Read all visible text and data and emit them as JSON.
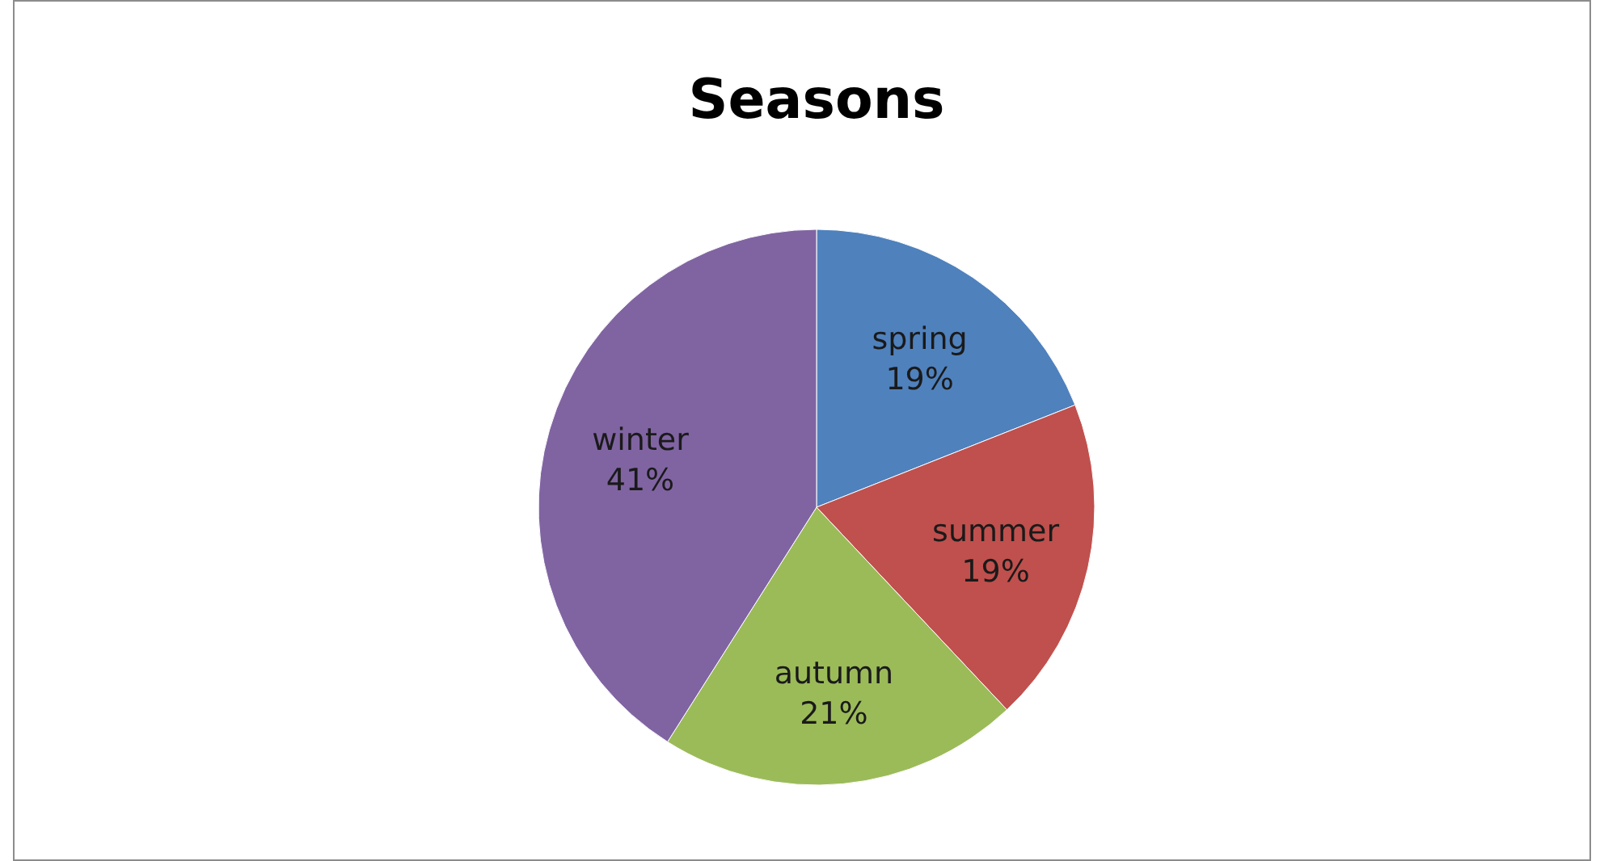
{
  "chart_data": {
    "type": "pie",
    "title": "Seasons",
    "categories": [
      "spring",
      "summer",
      "autumn",
      "winter"
    ],
    "values": [
      19,
      19,
      21,
      41
    ],
    "colors": [
      "#4f81bd",
      "#c0504d",
      "#9bbb59",
      "#8064a2"
    ],
    "value_labels": [
      "19%",
      "19%",
      "21%",
      "41%"
    ]
  }
}
